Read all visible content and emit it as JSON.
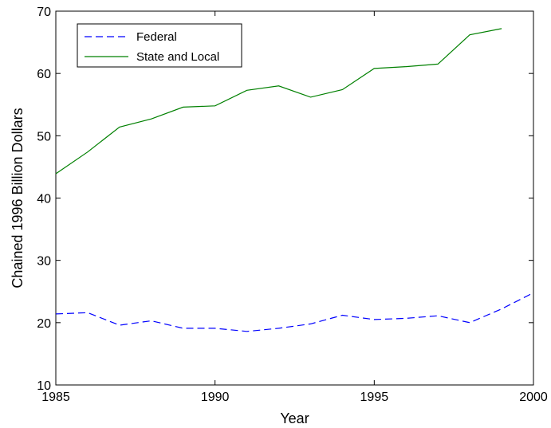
{
  "chart_data": {
    "type": "line",
    "title": "",
    "xlabel": "Year",
    "ylabel": "Chained 1996 Billion Dollars",
    "xlim": [
      1985,
      2000
    ],
    "ylim": [
      10,
      70
    ],
    "xticks": [
      1985,
      1990,
      1995,
      2000
    ],
    "yticks": [
      10,
      20,
      30,
      40,
      50,
      60,
      70
    ],
    "grid": false,
    "legend_position": "top-left",
    "series": [
      {
        "name": "Federal",
        "style": "dashed",
        "color": "#0000ff",
        "x": [
          1985,
          1986,
          1987,
          1988,
          1989,
          1990,
          1991,
          1992,
          1993,
          1994,
          1995,
          1996,
          1997,
          1998,
          1999,
          2000
        ],
        "values": [
          21.4,
          21.6,
          19.6,
          20.3,
          19.1,
          19.1,
          18.6,
          19.1,
          19.8,
          21.2,
          20.5,
          20.7,
          21.1,
          20.0,
          22.2,
          24.8
        ]
      },
      {
        "name": "State and Local",
        "style": "solid",
        "color": "#008000",
        "x": [
          1985,
          1986,
          1987,
          1988,
          1989,
          1990,
          1991,
          1992,
          1993,
          1994,
          1995,
          1996,
          1997,
          1998,
          1999
        ],
        "values": [
          43.9,
          47.4,
          51.4,
          52.7,
          54.6,
          54.8,
          57.3,
          58.0,
          56.2,
          57.4,
          60.8,
          61.1,
          61.5,
          66.2,
          67.2
        ]
      }
    ]
  }
}
